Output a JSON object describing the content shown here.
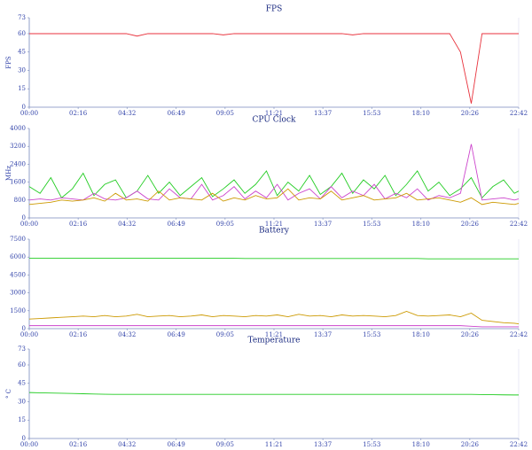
{
  "chart_data": [
    {
      "type": "line",
      "title": "FPS",
      "ylabel": "FPS",
      "x": [
        0,
        30,
        60,
        90,
        120,
        150,
        180,
        210,
        240,
        270,
        300,
        330,
        360,
        390,
        420,
        450,
        480,
        510,
        540,
        570,
        600,
        630,
        660,
        690,
        720,
        750,
        780,
        810,
        840,
        870,
        900,
        930,
        960,
        990,
        1020,
        1050,
        1080,
        1110,
        1140,
        1170,
        1200,
        1230,
        1260,
        1290,
        1320,
        1350,
        1362
      ],
      "xlim": [
        0,
        1362
      ],
      "xticks": [
        {
          "value": 0,
          "label": "00:00"
        },
        {
          "value": 136,
          "label": "02:16"
        },
        {
          "value": 272,
          "label": "04:32"
        },
        {
          "value": 409,
          "label": "06:49"
        },
        {
          "value": 545,
          "label": "09:05"
        },
        {
          "value": 681,
          "label": "11:21"
        },
        {
          "value": 817,
          "label": "13:37"
        },
        {
          "value": 953,
          "label": "15:53"
        },
        {
          "value": 1090,
          "label": "18:10"
        },
        {
          "value": 1226,
          "label": "20:26"
        },
        {
          "value": 1362,
          "label": "22:42"
        }
      ],
      "ylim": [
        0,
        73
      ],
      "yticks": [
        0,
        15,
        30,
        45,
        60,
        73
      ],
      "grid": false,
      "series": [
        {
          "color": "#e8323c",
          "values": [
            60,
            60,
            60,
            60,
            60,
            60,
            60,
            60,
            60,
            60,
            58,
            60,
            60,
            60,
            60,
            60,
            60,
            60,
            59,
            60,
            60,
            60,
            60,
            60,
            60,
            60,
            60,
            60,
            60,
            60,
            59,
            60,
            60,
            60,
            60,
            60,
            60,
            60,
            60,
            60,
            45,
            3,
            60,
            60,
            60,
            60,
            60
          ]
        }
      ]
    },
    {
      "type": "line",
      "title": "CPU Clock",
      "ylabel": "MHz",
      "x": [
        0,
        30,
        60,
        90,
        120,
        150,
        180,
        210,
        240,
        270,
        300,
        330,
        360,
        390,
        420,
        450,
        480,
        510,
        540,
        570,
        600,
        630,
        660,
        690,
        720,
        750,
        780,
        810,
        840,
        870,
        900,
        930,
        960,
        990,
        1020,
        1050,
        1080,
        1110,
        1140,
        1170,
        1200,
        1230,
        1260,
        1290,
        1320,
        1350,
        1362
      ],
      "xlim": [
        0,
        1362
      ],
      "xticks": [
        {
          "value": 0,
          "label": "00:00"
        },
        {
          "value": 136,
          "label": "02:16"
        },
        {
          "value": 272,
          "label": "04:32"
        },
        {
          "value": 409,
          "label": "06:49"
        },
        {
          "value": 545,
          "label": "09:05"
        },
        {
          "value": 681,
          "label": "11:21"
        },
        {
          "value": 817,
          "label": "13:37"
        },
        {
          "value": 953,
          "label": "15:53"
        },
        {
          "value": 1090,
          "label": "18:10"
        },
        {
          "value": 1226,
          "label": "20:26"
        },
        {
          "value": 1362,
          "label": "22:42"
        }
      ],
      "ylim": [
        0,
        4000
      ],
      "yticks": [
        0,
        800,
        1600,
        2400,
        3200,
        4000
      ],
      "grid": false,
      "series": [
        {
          "color": "#22cc22",
          "values": [
            1400,
            1100,
            1800,
            900,
            1300,
            2000,
            1000,
            1500,
            1700,
            900,
            1200,
            1900,
            1100,
            1600,
            1000,
            1400,
            1800,
            950,
            1300,
            1700,
            1100,
            1500,
            2100,
            1000,
            1600,
            1200,
            1900,
            1050,
            1400,
            2000,
            1100,
            1700,
            1300,
            1900,
            1000,
            1500,
            2100,
            1200,
            1600,
            1000,
            1300,
            1800,
            900,
            1400,
            1700,
            1100,
            1200
          ]
        },
        {
          "color": "#cc44cc",
          "values": [
            800,
            850,
            800,
            900,
            850,
            800,
            1100,
            850,
            800,
            900,
            1200,
            850,
            800,
            1300,
            900,
            850,
            1500,
            800,
            1000,
            1400,
            850,
            1200,
            900,
            1500,
            800,
            1100,
            1300,
            850,
            1400,
            900,
            1200,
            1000,
            1500,
            850,
            1100,
            900,
            1300,
            800,
            1000,
            900,
            1100,
            3300,
            800,
            850,
            900,
            800,
            850
          ]
        },
        {
          "color": "#cc9900",
          "values": [
            600,
            650,
            700,
            800,
            750,
            800,
            900,
            750,
            1100,
            800,
            850,
            750,
            1200,
            800,
            900,
            850,
            800,
            1100,
            750,
            900,
            800,
            1000,
            850,
            900,
            1300,
            800,
            900,
            850,
            1200,
            800,
            900,
            1000,
            800,
            850,
            900,
            1100,
            800,
            850,
            900,
            800,
            700,
            900,
            600,
            700,
            650,
            600,
            650
          ]
        }
      ]
    },
    {
      "type": "line",
      "title": "Battery",
      "x": [
        0,
        30,
        60,
        90,
        120,
        150,
        180,
        210,
        240,
        270,
        300,
        330,
        360,
        390,
        420,
        450,
        480,
        510,
        540,
        570,
        600,
        630,
        660,
        690,
        720,
        750,
        780,
        810,
        840,
        870,
        900,
        930,
        960,
        990,
        1020,
        1050,
        1080,
        1110,
        1140,
        1170,
        1200,
        1230,
        1260,
        1290,
        1320,
        1350,
        1362
      ],
      "xlim": [
        0,
        1362
      ],
      "xticks": [
        {
          "value": 0,
          "label": "00:00"
        },
        {
          "value": 136,
          "label": "02:16"
        },
        {
          "value": 272,
          "label": "04:32"
        },
        {
          "value": 409,
          "label": "06:49"
        },
        {
          "value": 545,
          "label": "09:05"
        },
        {
          "value": 681,
          "label": "11:21"
        },
        {
          "value": 817,
          "label": "13:37"
        },
        {
          "value": 953,
          "label": "15:53"
        },
        {
          "value": 1090,
          "label": "18:10"
        },
        {
          "value": 1226,
          "label": "20:26"
        },
        {
          "value": 1362,
          "label": "22:42"
        }
      ],
      "ylim": [
        0,
        7500
      ],
      "yticks": [
        0,
        1500,
        3000,
        4500,
        6000,
        7500
      ],
      "grid": false,
      "series": [
        {
          "color": "#22cc22",
          "values": [
            5900,
            5900,
            5900,
            5900,
            5900,
            5900,
            5900,
            5900,
            5900,
            5900,
            5900,
            5900,
            5900,
            5900,
            5900,
            5900,
            5900,
            5900,
            5900,
            5900,
            5880,
            5880,
            5880,
            5880,
            5880,
            5880,
            5880,
            5880,
            5880,
            5880,
            5880,
            5880,
            5880,
            5880,
            5880,
            5880,
            5880,
            5850,
            5850,
            5850,
            5850,
            5850,
            5850,
            5850,
            5850,
            5850,
            5850
          ]
        },
        {
          "color": "#cc9900",
          "values": [
            800,
            850,
            900,
            950,
            1000,
            1050,
            1000,
            1100,
            1000,
            1050,
            1200,
            1000,
            1050,
            1100,
            1000,
            1050,
            1150,
            1000,
            1100,
            1050,
            1000,
            1100,
            1050,
            1150,
            1000,
            1200,
            1050,
            1100,
            1000,
            1150,
            1050,
            1100,
            1050,
            1000,
            1100,
            1450,
            1100,
            1050,
            1100,
            1150,
            1000,
            1300,
            700,
            600,
            500,
            450,
            400
          ]
        },
        {
          "color": "#cc44cc",
          "values": [
            250,
            250,
            250,
            250,
            250,
            250,
            250,
            250,
            250,
            250,
            250,
            250,
            250,
            250,
            250,
            250,
            250,
            250,
            250,
            250,
            250,
            250,
            250,
            250,
            250,
            250,
            250,
            250,
            250,
            250,
            250,
            250,
            250,
            250,
            250,
            250,
            250,
            250,
            250,
            250,
            250,
            200,
            150,
            150,
            150,
            150,
            150
          ]
        }
      ]
    },
    {
      "type": "line",
      "title": "Temperature",
      "ylabel": "° C",
      "x": [
        0,
        30,
        60,
        90,
        120,
        150,
        180,
        210,
        240,
        270,
        300,
        330,
        360,
        390,
        420,
        450,
        480,
        510,
        540,
        570,
        600,
        630,
        660,
        690,
        720,
        750,
        780,
        810,
        840,
        870,
        900,
        930,
        960,
        990,
        1020,
        1050,
        1080,
        1110,
        1140,
        1170,
        1200,
        1230,
        1260,
        1290,
        1320,
        1350,
        1362
      ],
      "xlim": [
        0,
        1362
      ],
      "xticks": [
        {
          "value": 0,
          "label": "00:00"
        },
        {
          "value": 136,
          "label": "02:16"
        },
        {
          "value": 272,
          "label": "04:32"
        },
        {
          "value": 409,
          "label": "06:49"
        },
        {
          "value": 545,
          "label": "09:05"
        },
        {
          "value": 681,
          "label": "11:21"
        },
        {
          "value": 817,
          "label": "13:37"
        },
        {
          "value": 953,
          "label": "15:53"
        },
        {
          "value": 1090,
          "label": "18:10"
        },
        {
          "value": 1226,
          "label": "20:26"
        },
        {
          "value": 1362,
          "label": "22:42"
        }
      ],
      "ylim": [
        0,
        73
      ],
      "yticks": [
        0,
        15,
        30,
        45,
        60,
        73
      ],
      "grid": false,
      "series": [
        {
          "color": "#22cc22",
          "values": [
            37.5,
            37.3,
            37.1,
            36.9,
            36.7,
            36.5,
            36.3,
            36.1,
            36,
            36,
            36,
            36,
            36,
            36,
            36,
            36,
            36,
            36,
            36,
            36,
            36,
            36,
            36,
            36,
            36,
            36,
            36,
            36,
            36,
            36,
            36,
            36,
            36,
            36,
            36,
            36,
            36,
            36,
            36,
            36,
            36,
            36,
            35.8,
            35.7,
            35.6,
            35.5,
            35.5
          ]
        }
      ]
    }
  ]
}
